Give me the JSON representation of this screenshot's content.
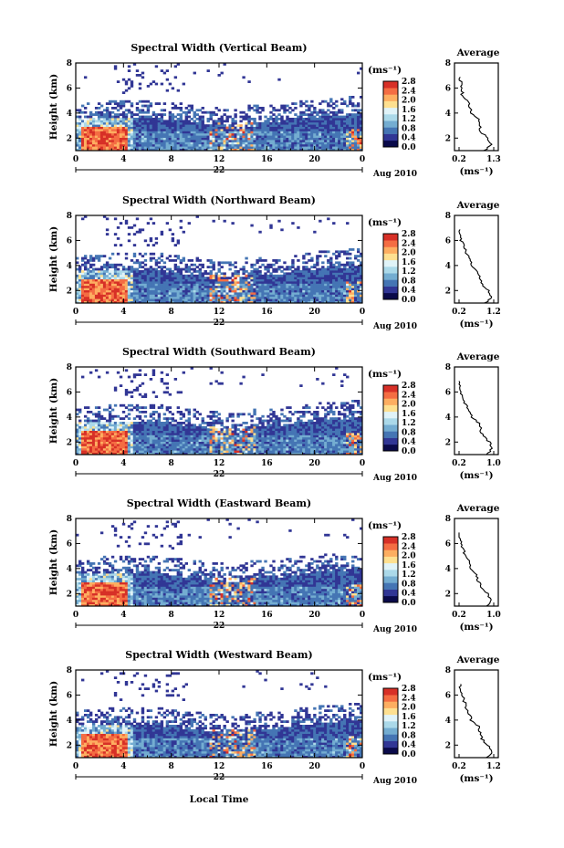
{
  "figure": {
    "x_label": "Local Time",
    "date_label": "Aug 2010",
    "date_day": "22",
    "y_label": "Height (km)",
    "colorbar_unit": "(ms⁻¹)",
    "avg_title": "Average",
    "avg_unit": "(ms⁻¹)"
  },
  "axes": {
    "x_ticks": [
      "0",
      "4",
      "8",
      "12",
      "16",
      "20",
      "0"
    ],
    "y_ticks": [
      "2",
      "4",
      "6",
      "8"
    ],
    "colorbar_ticks": [
      "0.0",
      "0.4",
      "0.8",
      "1.2",
      "1.6",
      "2.0",
      "2.4",
      "2.8"
    ],
    "avg_y_ticks": [
      "2",
      "4",
      "6",
      "8"
    ]
  },
  "colors": {
    "scale": [
      "#0a0a4a",
      "#313695",
      "#4575b4",
      "#74add1",
      "#abd9e9",
      "#e0f3f8",
      "#fee090",
      "#fdae61",
      "#f46d43",
      "#d73027"
    ],
    "avg_line": "#000000"
  },
  "panels": [
    {
      "title": "Spectral Width (Vertical Beam)",
      "avg_ticks": [
        "0.2",
        "1.3"
      ],
      "seed": 11
    },
    {
      "title": "Spectral Width (Northward Beam)",
      "avg_ticks": [
        "0.2",
        "1.2"
      ],
      "seed": 23
    },
    {
      "title": "Spectral Width (Southward Beam)",
      "avg_ticks": [
        "0.2",
        "1.0"
      ],
      "seed": 37
    },
    {
      "title": "Spectral Width (Eastward Beam)",
      "avg_ticks": [
        "0.2",
        "1.0"
      ],
      "seed": 41
    },
    {
      "title": "Spectral Width (Westward Beam)",
      "avg_ticks": [
        "0.2",
        "1.2"
      ],
      "seed": 53
    }
  ],
  "chart_data": {
    "type": "heatmap",
    "title": "Spectral Width",
    "xlabel": "Local Time",
    "ylabel": "Height (km)",
    "xlim": [
      0,
      24
    ],
    "ylim": [
      1,
      8
    ],
    "color_range": [
      0.0,
      2.8
    ],
    "color_unit": "ms⁻¹",
    "beams": [
      "Vertical",
      "Northward",
      "Southward",
      "Eastward",
      "Westward"
    ],
    "average_profiles": [
      {
        "beam": "Vertical",
        "xlim": [
          0.2,
          1.3
        ],
        "height_km": [
          1,
          1.5,
          2,
          2.5,
          3,
          3.5,
          4,
          4.5,
          5,
          5.5,
          6,
          6.5,
          7
        ],
        "width_ms": [
          1.0,
          1.25,
          1.1,
          0.9,
          0.85,
          0.8,
          0.6,
          0.55,
          0.45,
          0.3,
          0.3,
          0.25,
          0.2
        ]
      },
      {
        "beam": "Northward",
        "xlim": [
          0.2,
          1.2
        ],
        "height_km": [
          1,
          1.5,
          2,
          2.5,
          3,
          3.5,
          4,
          4.5,
          5,
          5.5,
          6,
          6.5,
          7
        ],
        "width_ms": [
          0.95,
          1.15,
          1.05,
          0.85,
          0.8,
          0.75,
          0.55,
          0.5,
          0.4,
          0.35,
          0.25,
          0.25,
          0.2
        ]
      },
      {
        "beam": "Southward",
        "xlim": [
          0.2,
          1.0
        ],
        "height_km": [
          1,
          1.5,
          2,
          2.5,
          3,
          3.5,
          4,
          4.5,
          5,
          5.5,
          6,
          6.5,
          7
        ],
        "width_ms": [
          0.85,
          0.95,
          0.9,
          0.75,
          0.7,
          0.65,
          0.5,
          0.45,
          0.35,
          0.3,
          0.25,
          0.22,
          0.2
        ]
      },
      {
        "beam": "Eastward",
        "xlim": [
          0.2,
          1.0
        ],
        "height_km": [
          1,
          1.5,
          2,
          2.5,
          3,
          3.5,
          4,
          4.5,
          5,
          5.5,
          6,
          6.5,
          7
        ],
        "width_ms": [
          0.85,
          0.95,
          0.85,
          0.7,
          0.65,
          0.6,
          0.45,
          0.45,
          0.35,
          0.3,
          0.25,
          0.22,
          0.2
        ]
      },
      {
        "beam": "Westward",
        "xlim": [
          0.2,
          1.2
        ],
        "height_km": [
          1,
          1.5,
          2,
          2.5,
          3,
          3.5,
          4,
          4.5,
          5,
          5.5,
          6,
          6.5,
          7
        ],
        "width_ms": [
          1.0,
          1.15,
          1.05,
          0.85,
          0.8,
          0.75,
          0.55,
          0.5,
          0.4,
          0.35,
          0.3,
          0.25,
          0.2
        ]
      }
    ]
  }
}
